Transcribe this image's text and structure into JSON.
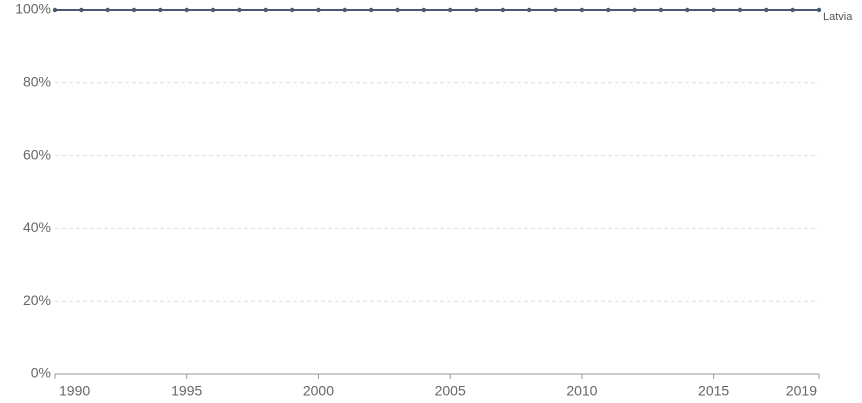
{
  "chart_data": {
    "type": "line",
    "x": [
      1990,
      1991,
      1992,
      1993,
      1994,
      1995,
      1996,
      1997,
      1998,
      1999,
      2000,
      2001,
      2002,
      2003,
      2004,
      2005,
      2006,
      2007,
      2008,
      2009,
      2010,
      2011,
      2012,
      2013,
      2014,
      2015,
      2016,
      2017,
      2018,
      2019
    ],
    "series": [
      {
        "name": "Latvia",
        "color": "#4a5870",
        "values": [
          100,
          100,
          100,
          100,
          100,
          100,
          100,
          100,
          100,
          100,
          100,
          100,
          100,
          100,
          100,
          100,
          100,
          100,
          100,
          100,
          100,
          100,
          100,
          100,
          100,
          100,
          100,
          100,
          100,
          100
        ]
      }
    ],
    "xlim": [
      1990,
      2019
    ],
    "xticks": [
      1990,
      1995,
      2000,
      2005,
      2010,
      2015,
      2019
    ],
    "ylim": [
      0,
      100
    ],
    "yticks": [
      {
        "value": 0,
        "label": "0%"
      },
      {
        "value": 20,
        "label": "20%"
      },
      {
        "value": 40,
        "label": "40%"
      },
      {
        "value": 60,
        "label": "60%"
      },
      {
        "value": 80,
        "label": "80%"
      },
      {
        "value": 100,
        "label": "100%"
      }
    ],
    "grid": true
  }
}
